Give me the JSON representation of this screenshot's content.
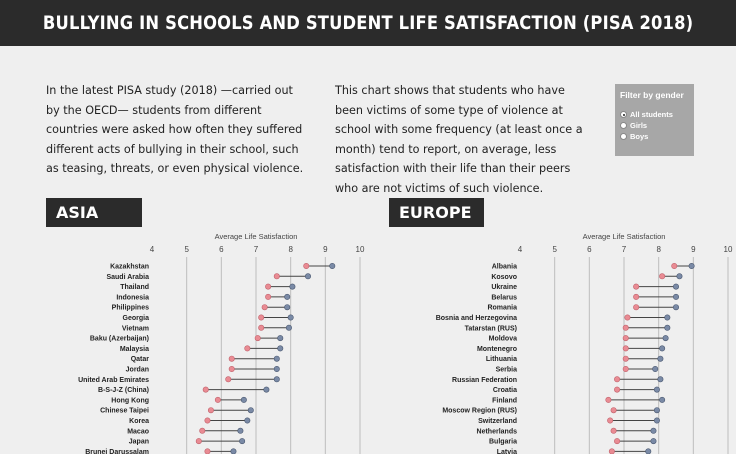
{
  "title": "BULLYING IN SCHOOLS AND STUDENT LIFE SATISFACTION (PISA 2018)",
  "intro_left": "In the latest PISA study (2018) —carried out by the OECD— students from different countries were asked how often they suffered different acts of bullying in their school, such as teasing, threats, or even physical violence.",
  "intro_right": "This chart shows that students who have been victims of some type of violence at school with some frequency (at least once a month) tend to report, on average, less satisfaction with their life than their peers who are not victims of such violence.",
  "filter": {
    "title": "Filter by gender",
    "options": [
      "All students",
      "Girls",
      "Boys"
    ],
    "selected": "All students"
  },
  "colors": {
    "victim": "#e98b93",
    "nonvictim": "#7a8aa6",
    "header": "#2b2b2b"
  },
  "chart_data": [
    {
      "region": "ASIA",
      "type": "dumbbell",
      "axis_label": "Average Life Satisfaction",
      "xlim": [
        4,
        10
      ],
      "ticks": [
        4,
        5,
        6,
        7,
        8,
        9,
        10
      ],
      "categories": [
        "Kazakhstan",
        "Saudi Arabia",
        "Thailand",
        "Indonesia",
        "Philippines",
        "Georgia",
        "Vietnam",
        "Baku (Azerbaijan)",
        "Malaysia",
        "Qatar",
        "Jordan",
        "United Arab Emirates",
        "B-S-J-Z (China)",
        "Hong Kong",
        "Chinese Taipei",
        "Korea",
        "Macao",
        "Japan",
        "Brunei Darussalam"
      ],
      "series": [
        {
          "values": [
            8.45,
            7.6,
            7.35,
            7.35,
            7.25,
            7.15,
            7.15,
            7.05,
            6.75,
            6.3,
            6.3,
            6.2,
            5.55,
            5.9,
            5.7,
            5.6,
            5.45,
            5.35,
            5.6
          ]
        },
        {
          "values": [
            9.2,
            8.5,
            8.05,
            7.9,
            7.9,
            8.0,
            7.95,
            7.7,
            7.7,
            7.6,
            7.6,
            7.6,
            7.3,
            6.65,
            6.85,
            6.75,
            6.55,
            6.6,
            6.35
          ]
        }
      ]
    },
    {
      "region": "EUROPE",
      "type": "dumbbell",
      "axis_label": "Average Life Satisfaction",
      "xlim": [
        4,
        10
      ],
      "ticks": [
        4,
        5,
        6,
        7,
        8,
        9,
        10
      ],
      "categories": [
        "Albania",
        "Kosovo",
        "Ukraine",
        "Belarus",
        "Romania",
        "Bosnia and Herzegovina",
        "Tatarstan (RUS)",
        "Moldova",
        "Montenegro",
        "Lithuania",
        "Serbia",
        "Russian Federation",
        "Croatia",
        "Finland",
        "Moscow Region (RUS)",
        "Switzerland",
        "Netherlands",
        "Bulgaria",
        "Latvia"
      ],
      "series": [
        {
          "values": [
            8.45,
            8.1,
            7.35,
            7.35,
            7.35,
            7.1,
            7.05,
            7.05,
            7.05,
            7.05,
            7.05,
            6.8,
            6.8,
            6.55,
            6.7,
            6.6,
            6.7,
            6.8,
            6.65
          ]
        },
        {
          "values": [
            8.95,
            8.6,
            8.5,
            8.5,
            8.5,
            8.25,
            8.25,
            8.2,
            8.1,
            8.05,
            7.9,
            8.05,
            7.95,
            8.1,
            7.95,
            7.95,
            7.85,
            7.85,
            7.7
          ]
        }
      ]
    }
  ]
}
